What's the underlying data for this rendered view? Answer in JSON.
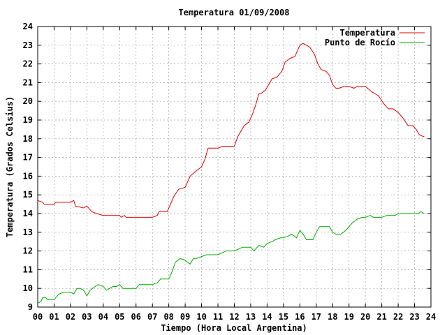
{
  "chart_data": {
    "type": "line",
    "title": "Temperatura 01/09/2008",
    "xlabel": "Tiempo (Hora Local Argentina)",
    "ylabel": "Temperatura (Grados Celsius)",
    "xlim": [
      0,
      24
    ],
    "ylim": [
      9,
      24
    ],
    "x_ticks": [
      "00",
      "01",
      "02",
      "03",
      "04",
      "05",
      "06",
      "07",
      "08",
      "09",
      "10",
      "11",
      "12",
      "13",
      "14",
      "15",
      "16",
      "17",
      "18",
      "19",
      "20",
      "21",
      "22",
      "23",
      "24"
    ],
    "y_ticks": [
      "9",
      "10",
      "11",
      "12",
      "13",
      "14",
      "15",
      "16",
      "17",
      "18",
      "19",
      "20",
      "21",
      "22",
      "23",
      "24"
    ],
    "grid": true,
    "legend_position": "top-right",
    "series": [
      {
        "name": "Temperatura",
        "color": "#dd0000",
        "x": [
          0.0,
          0.3,
          0.4,
          1.0,
          1.1,
          1.4,
          2.0,
          2.2,
          2.3,
          2.8,
          3.0,
          3.3,
          3.6,
          4.0,
          4.5,
          5.0,
          5.1,
          5.3,
          5.4,
          6.0,
          6.5,
          7.0,
          7.3,
          7.4,
          7.9,
          8.0,
          8.3,
          8.6,
          9.0,
          9.3,
          9.7,
          10.0,
          10.2,
          10.4,
          10.7,
          11.0,
          11.3,
          11.7,
          12.0,
          12.2,
          12.6,
          12.9,
          13.1,
          13.3,
          13.5,
          13.6,
          13.9,
          14.1,
          14.3,
          14.6,
          14.9,
          15.1,
          15.4,
          15.7,
          16.0,
          16.2,
          16.4,
          16.6,
          16.9,
          17.1,
          17.3,
          17.6,
          17.8,
          18.0,
          18.2,
          18.4,
          18.7,
          19.0,
          19.3,
          19.5,
          19.8,
          20.0,
          20.4,
          20.6,
          20.8,
          21.1,
          21.4,
          21.7,
          22.0,
          22.3,
          22.6,
          22.9,
          23.1,
          23.3,
          23.6
        ],
        "values": [
          14.7,
          14.6,
          14.5,
          14.5,
          14.6,
          14.6,
          14.6,
          14.7,
          14.4,
          14.3,
          14.4,
          14.1,
          14.0,
          13.9,
          13.9,
          13.9,
          13.8,
          13.9,
          13.8,
          13.8,
          13.8,
          13.8,
          13.9,
          14.1,
          14.1,
          14.3,
          14.9,
          15.3,
          15.4,
          16.0,
          16.3,
          16.5,
          16.9,
          17.5,
          17.5,
          17.5,
          17.6,
          17.6,
          17.6,
          18.1,
          18.7,
          18.9,
          19.3,
          19.8,
          20.4,
          20.4,
          20.6,
          20.9,
          21.2,
          21.3,
          21.6,
          22.1,
          22.3,
          22.4,
          23.0,
          23.1,
          23.0,
          22.9,
          22.5,
          22.0,
          21.7,
          21.6,
          21.4,
          20.9,
          20.7,
          20.7,
          20.8,
          20.8,
          20.7,
          20.8,
          20.8,
          20.8,
          20.5,
          20.4,
          20.3,
          19.9,
          19.6,
          19.6,
          19.4,
          19.1,
          18.7,
          18.7,
          18.5,
          18.2,
          18.1
        ]
      },
      {
        "name": "Punto de Rocío",
        "color": "#00aa00",
        "x": [
          0.0,
          0.2,
          0.3,
          0.5,
          0.6,
          1.0,
          1.3,
          1.6,
          2.0,
          2.2,
          2.4,
          2.6,
          2.8,
          3.0,
          3.2,
          3.5,
          3.7,
          4.0,
          4.2,
          4.4,
          4.6,
          4.8,
          5.0,
          5.2,
          5.5,
          6.0,
          6.2,
          6.5,
          7.0,
          7.3,
          7.5,
          8.0,
          8.2,
          8.4,
          8.7,
          9.0,
          9.3,
          9.5,
          9.7,
          10.0,
          10.3,
          10.6,
          11.0,
          11.5,
          12.0,
          12.5,
          13.0,
          13.2,
          13.5,
          13.8,
          14.0,
          14.3,
          14.5,
          14.8,
          15.0,
          15.3,
          15.5,
          15.8,
          16.0,
          16.2,
          16.4,
          16.6,
          16.8,
          17.0,
          17.2,
          17.5,
          17.8,
          18.0,
          18.2,
          18.5,
          18.8,
          19.0,
          19.2,
          19.5,
          19.8,
          20.0,
          20.3,
          20.5,
          20.8,
          21.0,
          21.3,
          21.5,
          21.8,
          22.0,
          22.3,
          22.5,
          22.8,
          23.0,
          23.2,
          23.4,
          23.6
        ],
        "values": [
          9.2,
          9.3,
          9.5,
          9.5,
          9.4,
          9.4,
          9.7,
          9.8,
          9.8,
          9.7,
          10.0,
          10.0,
          9.9,
          9.6,
          9.9,
          10.1,
          10.2,
          10.1,
          9.9,
          10.0,
          10.1,
          10.1,
          10.2,
          10.0,
          10.0,
          10.0,
          10.2,
          10.2,
          10.2,
          10.3,
          10.5,
          10.5,
          10.9,
          11.4,
          11.6,
          11.5,
          11.3,
          11.6,
          11.6,
          11.7,
          11.8,
          11.8,
          11.8,
          12.0,
          12.0,
          12.2,
          12.2,
          12.0,
          12.3,
          12.2,
          12.4,
          12.5,
          12.6,
          12.7,
          12.7,
          12.8,
          12.9,
          12.7,
          13.1,
          12.9,
          12.6,
          12.6,
          12.6,
          13.0,
          13.3,
          13.3,
          13.3,
          13.0,
          12.9,
          12.9,
          13.1,
          13.3,
          13.5,
          13.7,
          13.8,
          13.8,
          13.9,
          13.8,
          13.8,
          13.8,
          13.9,
          13.9,
          13.9,
          14.0,
          14.0,
          14.0,
          14.0,
          14.0,
          14.0,
          14.1,
          14.0
        ]
      }
    ]
  }
}
